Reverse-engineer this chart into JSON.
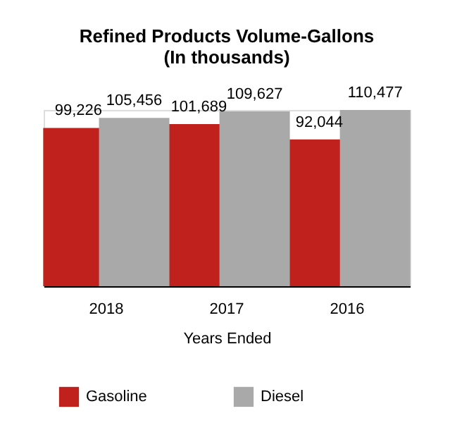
{
  "chart_data": {
    "type": "bar",
    "title": "Refined Products Volume-Gallons\n(In thousands)",
    "xlabel": "Years Ended",
    "categories": [
      "2018",
      "2017",
      "2016"
    ],
    "series": [
      {
        "name": "Gasoline",
        "color": "#c0211c",
        "values": [
          99226,
          101689,
          92044
        ],
        "value_labels": [
          "99,226",
          "101,689",
          "92,044"
        ]
      },
      {
        "name": "Diesel",
        "color": "#a9a9a9",
        "values": [
          105456,
          109627,
          110477
        ],
        "value_labels": [
          "105,456",
          "109,627",
          "110,477"
        ]
      }
    ],
    "legend": "bottom"
  }
}
